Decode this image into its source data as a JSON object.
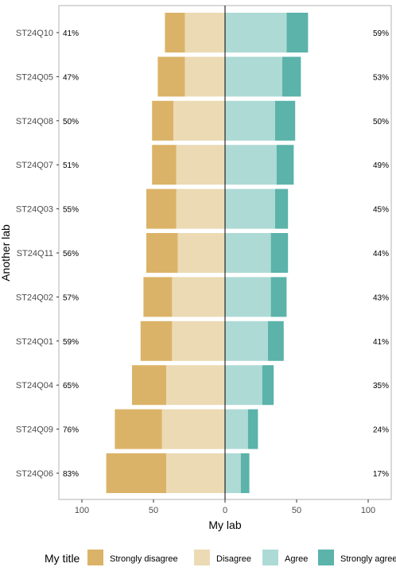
{
  "chart_data": {
    "type": "bar",
    "orientation": "horizontal-diverging",
    "title": "",
    "xlabel": "My lab",
    "ylabel": "Another lab",
    "xlim": [
      -100,
      100
    ],
    "x_ticks": [
      -100,
      -50,
      0,
      50,
      100
    ],
    "x_tick_labels": [
      "100",
      "50",
      "0",
      "50",
      "100"
    ],
    "grid": false,
    "legend": {
      "title": "My title",
      "position": "bottom",
      "entries": [
        "Strongly disagree",
        "Disagree",
        "Agree",
        "Strongly agree"
      ]
    },
    "colors": {
      "Strongly disagree": "#dbb368",
      "Disagree": "#ebdab4",
      "Agree": "#aedad6",
      "Strongly agree": "#5bb3aa"
    },
    "categories": [
      "ST24Q10",
      "ST24Q05",
      "ST24Q08",
      "ST24Q07",
      "ST24Q03",
      "ST24Q11",
      "ST24Q02",
      "ST24Q01",
      "ST24Q04",
      "ST24Q09",
      "ST24Q06"
    ],
    "series": [
      {
        "name": "Strongly disagree",
        "values": [
          14,
          19,
          15,
          17,
          21,
          22,
          20,
          22,
          24,
          33,
          42
        ]
      },
      {
        "name": "Disagree",
        "values": [
          28,
          28,
          36,
          34,
          34,
          33,
          37,
          37,
          41,
          44,
          41
        ]
      },
      {
        "name": "Agree",
        "values": [
          43,
          40,
          35,
          36,
          35,
          32,
          32,
          30,
          26,
          16,
          11
        ]
      },
      {
        "name": "Strongly agree",
        "values": [
          15,
          13,
          14,
          12,
          9,
          12,
          11,
          11,
          8,
          7,
          6
        ]
      }
    ],
    "left_percent_labels": [
      "41%",
      "47%",
      "50%",
      "51%",
      "55%",
      "56%",
      "57%",
      "59%",
      "65%",
      "76%",
      "83%"
    ],
    "right_percent_labels": [
      "59%",
      "53%",
      "50%",
      "49%",
      "45%",
      "44%",
      "43%",
      "41%",
      "35%",
      "24%",
      "17%"
    ]
  }
}
